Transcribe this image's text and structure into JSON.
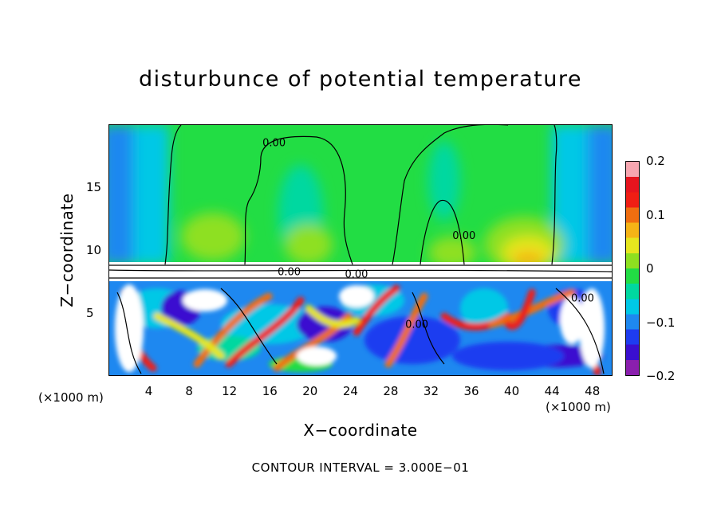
{
  "chart_data": {
    "type": "heatmap",
    "title": "disturbunce of potential temperature",
    "xlabel": "X−coordinate",
    "ylabel": "Z−coordinate",
    "x_unit_left": "(×1000 m)",
    "x_unit_right": "(×1000 m)",
    "x_ticks": [
      4,
      8,
      12,
      16,
      20,
      24,
      28,
      32,
      36,
      40,
      44,
      48
    ],
    "y_ticks": [
      5,
      10,
      15
    ],
    "xlim": [
      0,
      50
    ],
    "ylim": [
      0,
      20
    ],
    "colorbar": {
      "ticks": [
        {
          "value": 0.2,
          "label": "0.2"
        },
        {
          "value": 0.1,
          "label": "0.1"
        },
        {
          "value": 0,
          "label": "0"
        },
        {
          "value": -0.1,
          "label": "−0.1"
        },
        {
          "value": -0.2,
          "label": "−0.2"
        }
      ],
      "range": [
        -0.2,
        0.2
      ],
      "colors": [
        "#8a1fae",
        "#3a0fd0",
        "#1e3cf0",
        "#1e88f0",
        "#00c8e6",
        "#00d8a0",
        "#22dd44",
        "#8ee020",
        "#e6e61e",
        "#f5b416",
        "#f06e10",
        "#f01e14",
        "#e6141e",
        "#f7a6b0"
      ]
    },
    "contour_labels": [
      {
        "text": "0.00",
        "x": 16.4,
        "z": 18.3
      },
      {
        "text": "0.00",
        "x": 35.3,
        "z": 10.9
      },
      {
        "text": "0.00",
        "x": 17.9,
        "z": 8.0
      },
      {
        "text": "0.00",
        "x": 24.6,
        "z": 7.8
      },
      {
        "text": "0.00",
        "x": 30.6,
        "z": 3.8
      },
      {
        "text": "0.00",
        "x": 47.1,
        "z": 5.9
      }
    ],
    "contour_interval_label": "CONTOUR INTERVAL = 3.000E−01"
  }
}
